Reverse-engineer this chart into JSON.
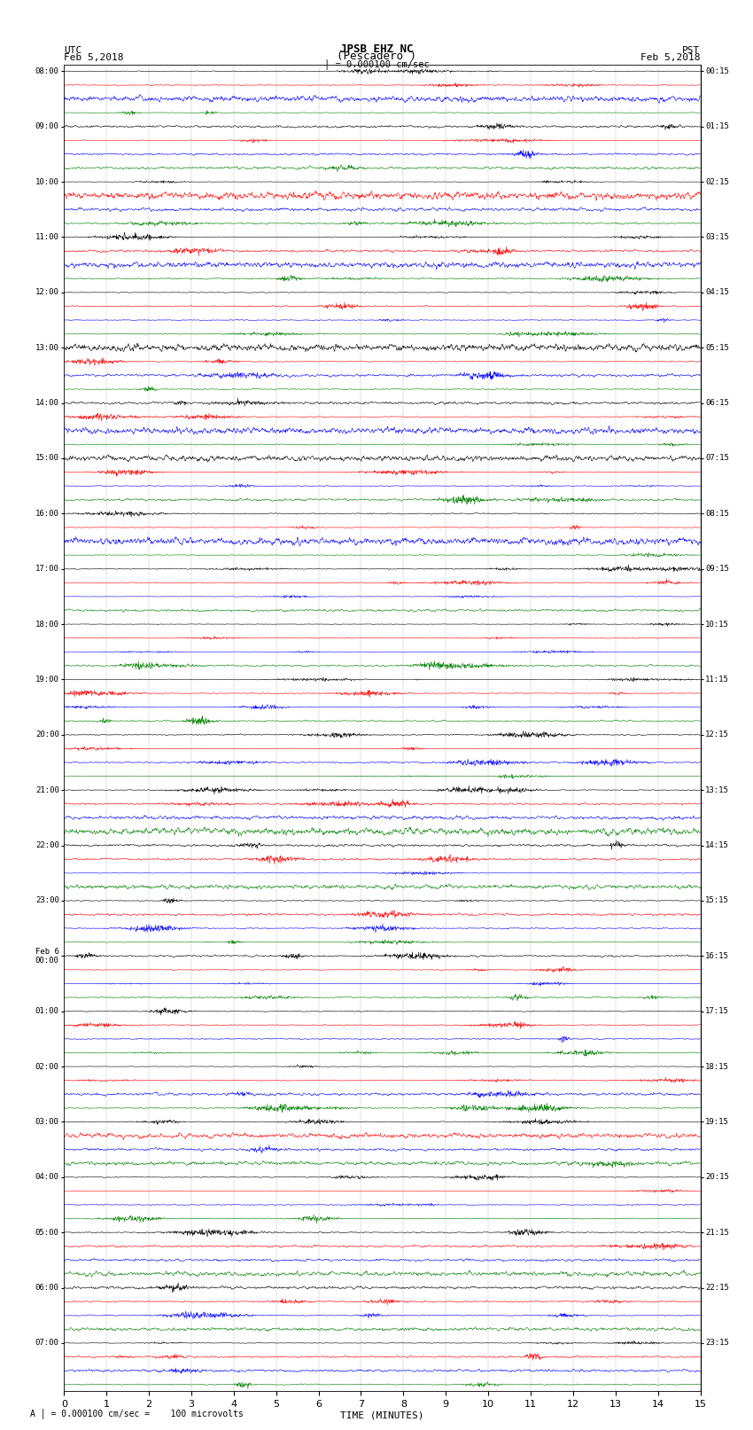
{
  "title_line1": "JPSB EHZ NC",
  "title_line2": "(Pescadero )",
  "scale_label": "= 0.000100 cm/sec",
  "left_label_top": "UTC",
  "left_label_date": "Feb 5,2018",
  "right_label_top": "PST",
  "right_label_date": "Feb 5,2018",
  "bottom_label": "TIME (MINUTES)",
  "bottom_note": "= 0.000100 cm/sec =    100 microvolts",
  "xlabel_ticks": [
    0,
    1,
    2,
    3,
    4,
    5,
    6,
    7,
    8,
    9,
    10,
    11,
    12,
    13,
    14,
    15
  ],
  "utc_labels": [
    "08:00",
    "09:00",
    "10:00",
    "11:00",
    "12:00",
    "13:00",
    "14:00",
    "15:00",
    "16:00",
    "17:00",
    "18:00",
    "19:00",
    "20:00",
    "21:00",
    "22:00",
    "23:00",
    "Feb 6\n00:00",
    "01:00",
    "02:00",
    "03:00",
    "04:00",
    "05:00",
    "06:00",
    "07:00"
  ],
  "pst_labels": [
    "00:15",
    "01:15",
    "02:15",
    "03:15",
    "04:15",
    "05:15",
    "06:15",
    "07:15",
    "08:15",
    "09:15",
    "10:15",
    "11:15",
    "12:15",
    "13:15",
    "14:15",
    "15:15",
    "16:15",
    "17:15",
    "18:15",
    "19:15",
    "20:15",
    "21:15",
    "22:15",
    "23:15"
  ],
  "colors": [
    "black",
    "red",
    "blue",
    "green"
  ],
  "n_hours": 24,
  "traces_per_hour": 4,
  "n_points": 1800,
  "x_min": 0,
  "x_max": 15,
  "bg_color": "white",
  "trace_amplitude": 0.38,
  "seed": 42,
  "noise_base": 0.08,
  "figwidth": 8.5,
  "figheight": 16.13,
  "dpi": 100
}
